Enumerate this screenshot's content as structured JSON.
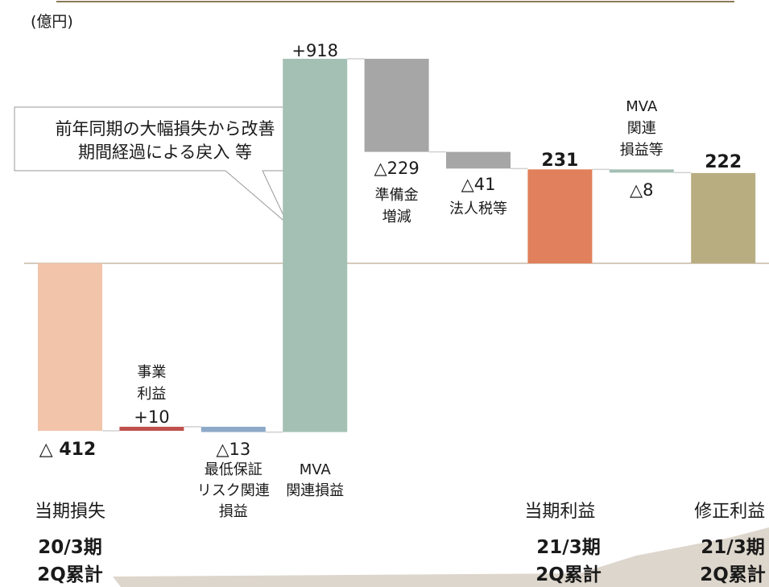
{
  "chart_data": {
    "type": "waterfall",
    "unit": "(億円)",
    "annotation": [
      "前年同期の大幅損失から改善",
      "期間経過による戻入 等"
    ],
    "categories": [
      [
        "当期損失"
      ],
      [
        "事業",
        "利益"
      ],
      [
        "最低保証",
        "リスク関連",
        "損益"
      ],
      [
        "MVA",
        "関連損益"
      ],
      [
        "準備金",
        "増減"
      ],
      [
        "法人税等"
      ],
      [
        "当期利益"
      ],
      [
        "MVA",
        "関連",
        "損益等"
      ],
      [
        "修正利益"
      ]
    ],
    "values": [
      -412,
      10,
      -13,
      918,
      -229,
      -41,
      231,
      -8,
      222
    ],
    "value_labels": [
      "△ 412",
      "+10",
      "△13",
      "+918",
      "△229",
      "△41",
      "231",
      "△8",
      "222"
    ],
    "totals": [
      true,
      false,
      false,
      false,
      false,
      false,
      true,
      false,
      true
    ],
    "colors": [
      "#f2c4aa",
      "#c0504d",
      "#8ea9c8",
      "#a4c0b4",
      "#a6a6a6",
      "#a6a6a6",
      "#e0805c",
      "#a4c0b4",
      "#b8ad80"
    ],
    "periods": [
      [
        "20/3期",
        "2Q累計"
      ],
      [
        "21/3期",
        "2Q累計"
      ],
      [
        "21/3期",
        "2Q累計"
      ]
    ]
  }
}
